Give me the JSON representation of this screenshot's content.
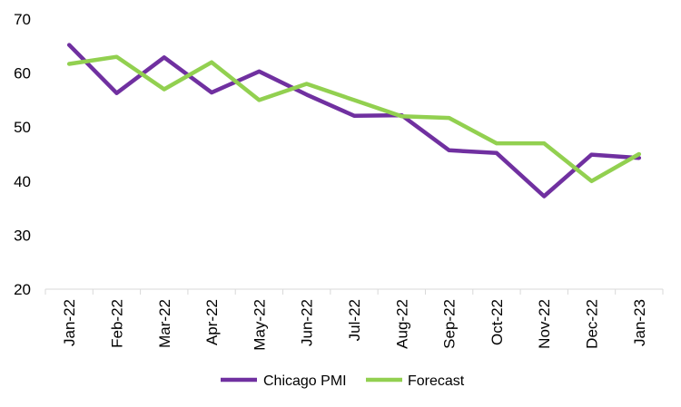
{
  "chart_data": {
    "type": "line",
    "categories": [
      "Jan-22",
      "Feb-22",
      "Mar-22",
      "Apr-22",
      "May-22",
      "Jun-22",
      "Jul-22",
      "Aug-22",
      "Sep-22",
      "Oct-22",
      "Nov-22",
      "Dec-22",
      "Jan-23"
    ],
    "series": [
      {
        "name": "Chicago PMI",
        "color": "#7030A0",
        "values": [
          65.2,
          56.3,
          62.9,
          56.4,
          60.3,
          56.0,
          52.1,
          52.2,
          45.7,
          45.2,
          37.2,
          44.9,
          44.3
        ]
      },
      {
        "name": "Forecast",
        "color": "#92D050",
        "values": [
          61.7,
          63.0,
          57.0,
          62.0,
          55.0,
          58.0,
          55.0,
          52.0,
          51.7,
          47.0,
          47.0,
          40.0,
          45.0
        ]
      }
    ],
    "ylim": [
      20,
      70
    ],
    "yticks": [
      20,
      30,
      40,
      50,
      60,
      70
    ],
    "grid": false,
    "legend_position": "bottom"
  }
}
